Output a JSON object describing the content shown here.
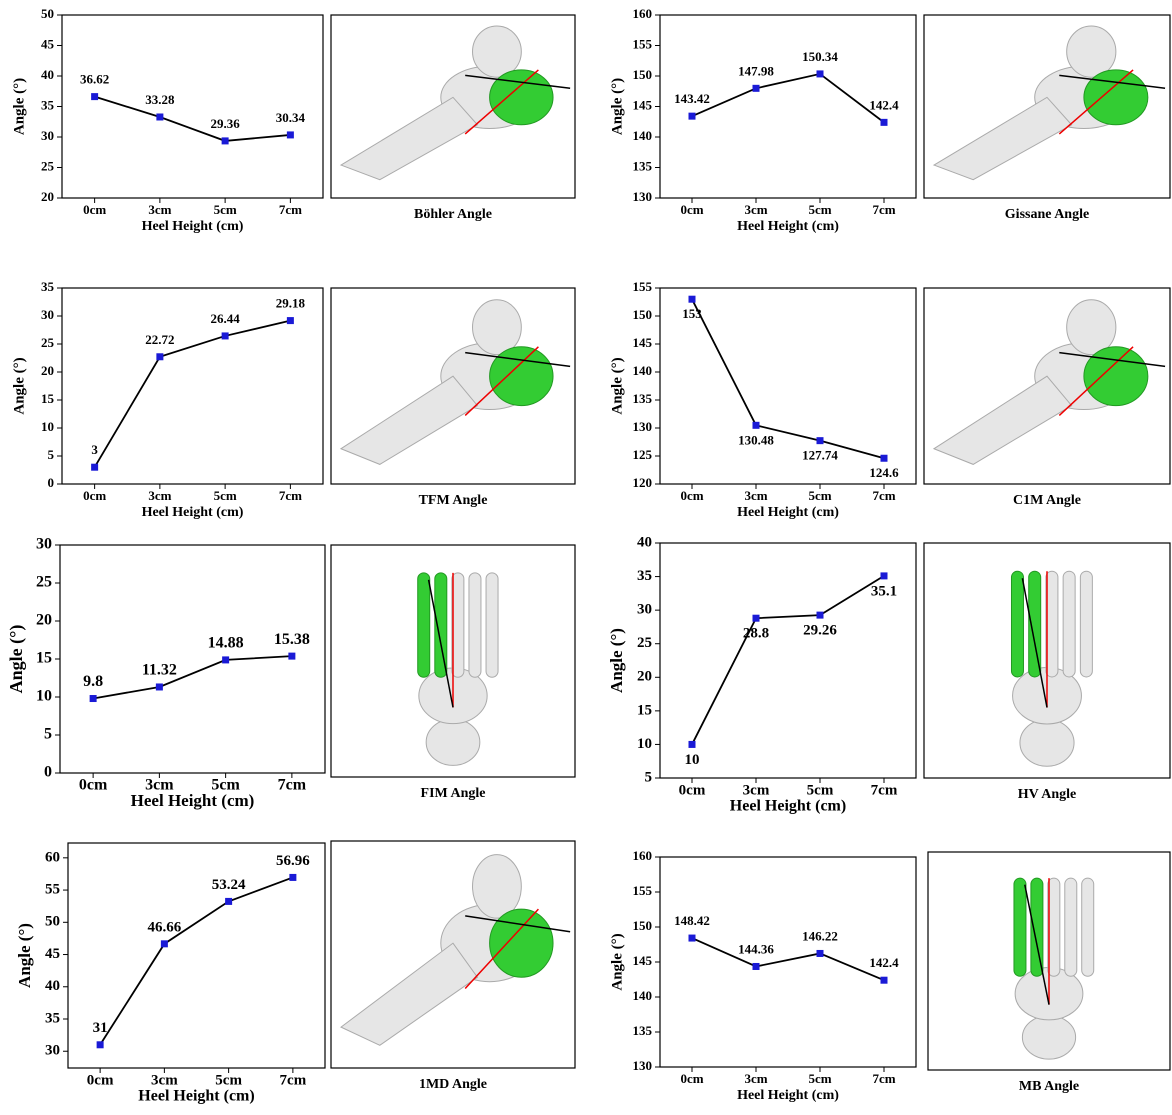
{
  "chart_data": [
    {
      "type": "line",
      "caption": "Böhler Angle",
      "xlabel": "Heel Height (cm)",
      "ylabel": "Angle (°)",
      "categories": [
        "0cm",
        "3cm",
        "5cm",
        "7cm"
      ],
      "values": [
        36.62,
        33.28,
        29.36,
        30.34
      ],
      "ylim": [
        20,
        50
      ],
      "yticks": [
        20,
        25,
        30,
        35,
        40,
        45,
        50
      ],
      "color": "#1a1ad6"
    },
    {
      "type": "line",
      "caption": "Gissane Angle",
      "xlabel": "Heel Height (cm)",
      "ylabel": "Angle (°)",
      "categories": [
        "0cm",
        "3cm",
        "5cm",
        "7cm"
      ],
      "values": [
        143.42,
        147.98,
        150.34,
        142.4
      ],
      "ylim": [
        130,
        160
      ],
      "yticks": [
        130,
        135,
        140,
        145,
        150,
        155,
        160
      ],
      "color": "#1a1ad6"
    },
    {
      "type": "line",
      "caption": "TFM Angle",
      "xlabel": "Heel Height (cm)",
      "ylabel": "Angle (°)",
      "categories": [
        "0cm",
        "3cm",
        "5cm",
        "7cm"
      ],
      "values": [
        3,
        22.72,
        26.44,
        29.18
      ],
      "ylim": [
        0,
        35
      ],
      "yticks": [
        0,
        5,
        10,
        15,
        20,
        25,
        30,
        35
      ],
      "color": "#1a1ad6"
    },
    {
      "type": "line",
      "caption": "C1M  Angle",
      "xlabel": "Heel Height (cm)",
      "ylabel": "Angle (°)",
      "categories": [
        "0cm",
        "3cm",
        "5cm",
        "7cm"
      ],
      "values": [
        153,
        130.48,
        127.74,
        124.6
      ],
      "ylim": [
        120,
        155
      ],
      "yticks": [
        120,
        125,
        130,
        135,
        140,
        145,
        150,
        155
      ],
      "color": "#1a1ad6"
    },
    {
      "type": "line",
      "caption": "FIM Angle",
      "xlabel": "Heel Height (cm)",
      "ylabel": "Angle (°)",
      "categories": [
        "0cm",
        "3cm",
        "5cm",
        "7cm"
      ],
      "values": [
        9.8,
        11.32,
        14.88,
        15.38
      ],
      "ylim": [
        0,
        30
      ],
      "yticks": [
        0,
        5,
        10,
        15,
        20,
        25,
        30
      ],
      "color": "#1a1ad6"
    },
    {
      "type": "line",
      "caption": "HV Angle",
      "xlabel": "Heel Height (cm)",
      "ylabel": "Angle (°)",
      "categories": [
        "0cm",
        "3cm",
        "5cm",
        "7cm"
      ],
      "values": [
        10,
        28.8,
        29.26,
        35.1
      ],
      "ylim": [
        5,
        40
      ],
      "yticks": [
        5,
        10,
        15,
        20,
        25,
        30,
        35,
        40
      ],
      "color": "#1a1ad6"
    },
    {
      "type": "line",
      "caption": "1MD Angle",
      "xlabel": "Heel Height (cm)",
      "ylabel": "Angle (°)",
      "categories": [
        "0cm",
        "3cm",
        "5cm",
        "7cm"
      ],
      "values": [
        31,
        46.66,
        53.24,
        56.96
      ],
      "ylim": [
        27.4,
        62.3
      ],
      "yticks": [
        30,
        35,
        40,
        45,
        50,
        55,
        60
      ],
      "color": "#1a1ad6"
    },
    {
      "type": "line",
      "caption": "MB Angle",
      "xlabel": "Heel Height (cm)",
      "ylabel": "Angle (°)",
      "categories": [
        "0cm",
        "3cm",
        "5cm",
        "7cm"
      ],
      "values": [
        148.42,
        144.36,
        146.22,
        142.4
      ],
      "ylim": [
        130,
        160
      ],
      "yticks": [
        130,
        135,
        140,
        145,
        150,
        155,
        160
      ],
      "color": "#1a1ad6"
    }
  ]
}
